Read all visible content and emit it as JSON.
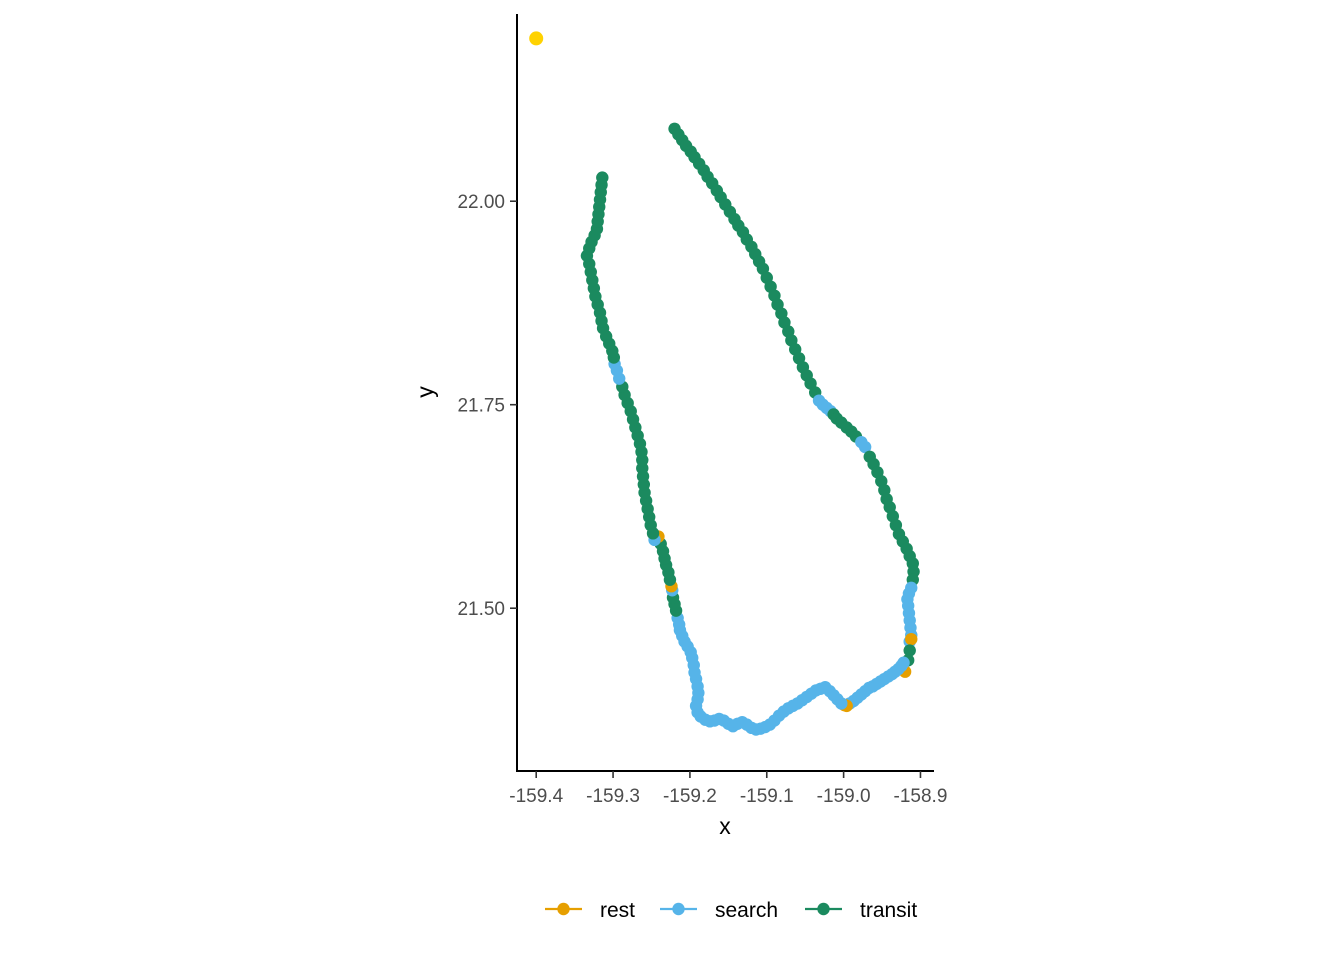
{
  "chart_data": {
    "type": "scatter",
    "title": "",
    "xlabel": "x",
    "ylabel": "y",
    "xlim": [
      -159.425,
      -158.885
    ],
    "ylim": [
      21.3,
      22.23
    ],
    "x_ticks": [
      -159.4,
      -159.3,
      -159.2,
      -159.1,
      -159.0,
      -158.9
    ],
    "x_tick_labels": [
      "-159.4",
      "-159.3",
      "-159.2",
      "-159.1",
      "-159.0",
      "-158.9"
    ],
    "y_ticks": [
      21.5,
      21.75,
      22.0
    ],
    "y_tick_labels": [
      "21.50",
      "21.75",
      "22.00"
    ],
    "grid": false,
    "legend_position": "bottom",
    "colors": {
      "rest": "#E69F00",
      "search": "#56B4E9",
      "transit": "#1B8A5F",
      "start": "#FFD200"
    },
    "legend": [
      {
        "key": "rest",
        "label": "rest"
      },
      {
        "key": "search",
        "label": "search"
      },
      {
        "key": "transit",
        "label": "transit"
      }
    ],
    "start_point": {
      "x": -159.4,
      "y": 22.2
    },
    "track": [
      [
        -159.22,
        22.089,
        "transit"
      ],
      [
        -159.215,
        22.082,
        "transit"
      ],
      [
        -159.21,
        22.075,
        "transit"
      ],
      [
        -159.205,
        22.068,
        "transit"
      ],
      [
        -159.199,
        22.061,
        "transit"
      ],
      [
        -159.194,
        22.054,
        "transit"
      ],
      [
        -159.188,
        22.046,
        "transit"
      ],
      [
        -159.182,
        22.038,
        "transit"
      ],
      [
        -159.177,
        22.03,
        "transit"
      ],
      [
        -159.171,
        22.022,
        "transit"
      ],
      [
        -159.165,
        22.013,
        "transit"
      ],
      [
        -159.16,
        22.005,
        "transit"
      ],
      [
        -159.154,
        21.996,
        "transit"
      ],
      [
        -159.148,
        21.987,
        "transit"
      ],
      [
        -159.142,
        21.978,
        "transit"
      ],
      [
        -159.137,
        21.97,
        "transit"
      ],
      [
        -159.131,
        21.962,
        "transit"
      ],
      [
        -159.126,
        21.953,
        "transit"
      ],
      [
        -159.12,
        21.944,
        "transit"
      ],
      [
        -159.115,
        21.935,
        "transit"
      ],
      [
        -159.11,
        21.926,
        "transit"
      ],
      [
        -159.105,
        21.917,
        "transit"
      ],
      [
        -159.1,
        21.906,
        "transit"
      ],
      [
        -159.095,
        21.895,
        "transit"
      ],
      [
        -159.09,
        21.884,
        "transit"
      ],
      [
        -159.086,
        21.873,
        "transit"
      ],
      [
        -159.081,
        21.862,
        "transit"
      ],
      [
        -159.077,
        21.851,
        "transit"
      ],
      [
        -159.072,
        21.84,
        "transit"
      ],
      [
        -159.068,
        21.829,
        "transit"
      ],
      [
        -159.063,
        21.818,
        "transit"
      ],
      [
        -159.058,
        21.807,
        "transit"
      ],
      [
        -159.053,
        21.796,
        "transit"
      ],
      [
        -159.048,
        21.786,
        "transit"
      ],
      [
        -159.043,
        21.776,
        "transit"
      ],
      [
        -159.037,
        21.765,
        "transit"
      ],
      [
        -159.032,
        21.755,
        "search"
      ],
      [
        -159.027,
        21.75,
        "search"
      ],
      [
        -159.022,
        21.746,
        "search"
      ],
      [
        -159.017,
        21.742,
        "search"
      ],
      [
        -159.013,
        21.738,
        "transit"
      ],
      [
        -159.009,
        21.733,
        "transit"
      ],
      [
        -159.003,
        21.728,
        "transit"
      ],
      [
        -158.996,
        21.722,
        "transit"
      ],
      [
        -158.99,
        21.717,
        "transit"
      ],
      [
        -158.984,
        21.711,
        "transit"
      ],
      [
        -158.977,
        21.704,
        "search"
      ],
      [
        -158.972,
        21.698,
        "search"
      ],
      [
        -158.966,
        21.686,
        "transit"
      ],
      [
        -158.961,
        21.677,
        "transit"
      ],
      [
        -158.956,
        21.667,
        "transit"
      ],
      [
        -158.951,
        21.656,
        "transit"
      ],
      [
        -158.947,
        21.645,
        "transit"
      ],
      [
        -158.944,
        21.634,
        "transit"
      ],
      [
        -158.94,
        21.624,
        "transit"
      ],
      [
        -158.936,
        21.613,
        "transit"
      ],
      [
        -158.932,
        21.602,
        "transit"
      ],
      [
        -158.928,
        21.591,
        "transit"
      ],
      [
        -158.923,
        21.582,
        "transit"
      ],
      [
        -158.918,
        21.573,
        "transit"
      ],
      [
        -158.914,
        21.564,
        "transit"
      ],
      [
        -158.91,
        21.555,
        "transit"
      ],
      [
        -158.909,
        21.545,
        "transit"
      ],
      [
        -158.91,
        21.535,
        "transit"
      ],
      [
        -158.912,
        21.525,
        "search"
      ],
      [
        -158.915,
        21.518,
        "search"
      ],
      [
        -158.917,
        21.511,
        "search"
      ],
      [
        -158.916,
        21.503,
        "search"
      ],
      [
        -158.915,
        21.494,
        "search"
      ],
      [
        -158.914,
        21.485,
        "search"
      ],
      [
        -158.913,
        21.476,
        "search"
      ],
      [
        -158.912,
        21.467,
        "search"
      ],
      [
        -158.914,
        21.459,
        "search"
      ],
      [
        -158.912,
        21.462,
        "rest"
      ],
      [
        -158.914,
        21.448,
        "transit"
      ],
      [
        -158.916,
        21.436,
        "transit"
      ],
      [
        -158.92,
        21.422,
        "rest"
      ],
      [
        -158.922,
        21.433,
        "search"
      ],
      [
        -158.925,
        21.429,
        "search"
      ],
      [
        -158.929,
        21.425,
        "search"
      ],
      [
        -158.933,
        21.422,
        "search"
      ],
      [
        -158.937,
        21.419,
        "search"
      ],
      [
        -158.942,
        21.416,
        "search"
      ],
      [
        -158.947,
        21.413,
        "search"
      ],
      [
        -158.952,
        21.41,
        "search"
      ],
      [
        -158.957,
        21.407,
        "search"
      ],
      [
        -158.962,
        21.404,
        "search"
      ],
      [
        -158.967,
        21.402,
        "search"
      ],
      [
        -158.972,
        21.398,
        "search"
      ],
      [
        -158.977,
        21.394,
        "search"
      ],
      [
        -158.982,
        21.39,
        "search"
      ],
      [
        -158.987,
        21.386,
        "search"
      ],
      [
        -158.992,
        21.383,
        "search"
      ],
      [
        -158.996,
        21.38,
        "rest"
      ],
      [
        -158.999,
        21.381,
        "rest"
      ],
      [
        -159.003,
        21.383,
        "search"
      ],
      [
        -159.008,
        21.388,
        "search"
      ],
      [
        -159.013,
        21.393,
        "search"
      ],
      [
        -159.018,
        21.398,
        "search"
      ],
      [
        -159.024,
        21.403,
        "search"
      ],
      [
        -159.03,
        21.401,
        "search"
      ],
      [
        -159.036,
        21.399,
        "search"
      ],
      [
        -159.042,
        21.395,
        "search"
      ],
      [
        -159.048,
        21.391,
        "search"
      ],
      [
        -159.054,
        21.387,
        "search"
      ],
      [
        -159.06,
        21.383,
        "search"
      ],
      [
        -159.066,
        21.38,
        "search"
      ],
      [
        -159.072,
        21.377,
        "search"
      ],
      [
        -159.078,
        21.373,
        "search"
      ],
      [
        -159.084,
        21.368,
        "search"
      ],
      [
        -159.09,
        21.362,
        "search"
      ],
      [
        -159.096,
        21.357,
        "search"
      ],
      [
        -159.102,
        21.354,
        "search"
      ],
      [
        -159.108,
        21.352,
        "search"
      ],
      [
        -159.114,
        21.351,
        "search"
      ],
      [
        -159.12,
        21.353,
        "search"
      ],
      [
        -159.126,
        21.357,
        "search"
      ],
      [
        -159.132,
        21.36,
        "search"
      ],
      [
        -159.138,
        21.358,
        "search"
      ],
      [
        -159.144,
        21.355,
        "search"
      ],
      [
        -159.15,
        21.358,
        "search"
      ],
      [
        -159.156,
        21.362,
        "search"
      ],
      [
        -159.162,
        21.364,
        "search"
      ],
      [
        -159.168,
        21.362,
        "search"
      ],
      [
        -159.174,
        21.361,
        "search"
      ],
      [
        -159.18,
        21.363,
        "search"
      ],
      [
        -159.186,
        21.367,
        "search"
      ],
      [
        -159.19,
        21.372,
        "search"
      ],
      [
        -159.192,
        21.38,
        "search"
      ],
      [
        -159.19,
        21.388,
        "search"
      ],
      [
        -159.189,
        21.396,
        "search"
      ],
      [
        -159.19,
        21.404,
        "search"
      ],
      [
        -159.192,
        21.413,
        "search"
      ],
      [
        -159.194,
        21.421,
        "search"
      ],
      [
        -159.195,
        21.43,
        "search"
      ],
      [
        -159.197,
        21.439,
        "search"
      ],
      [
        -159.199,
        21.446,
        "search"
      ],
      [
        -159.203,
        21.453,
        "search"
      ],
      [
        -159.207,
        21.459,
        "search"
      ],
      [
        -159.21,
        21.466,
        "search"
      ],
      [
        -159.213,
        21.473,
        "search"
      ],
      [
        -159.214,
        21.48,
        "search"
      ],
      [
        -159.216,
        21.488,
        "search"
      ],
      [
        -159.218,
        21.497,
        "transit"
      ],
      [
        -159.22,
        21.505,
        "transit"
      ],
      [
        -159.222,
        21.513,
        "transit"
      ],
      [
        -159.223,
        21.522,
        "search"
      ],
      [
        -159.224,
        21.527,
        "rest"
      ],
      [
        -159.226,
        21.535,
        "transit"
      ],
      [
        -159.228,
        21.544,
        "transit"
      ],
      [
        -159.231,
        21.553,
        "transit"
      ],
      [
        -159.233,
        21.561,
        "transit"
      ],
      [
        -159.235,
        21.57,
        "transit"
      ],
      [
        -159.238,
        21.579,
        "transit"
      ],
      [
        -159.241,
        21.588,
        "rest"
      ],
      [
        -159.246,
        21.584,
        "search"
      ],
      [
        -159.248,
        21.592,
        "transit"
      ],
      [
        -159.251,
        21.602,
        "transit"
      ],
      [
        -159.253,
        21.612,
        "transit"
      ],
      [
        -159.255,
        21.622,
        "transit"
      ],
      [
        -159.257,
        21.632,
        "transit"
      ],
      [
        -159.259,
        21.642,
        "transit"
      ],
      [
        -159.26,
        21.652,
        "transit"
      ],
      [
        -159.261,
        21.662,
        "transit"
      ],
      [
        -159.262,
        21.672,
        "transit"
      ],
      [
        -159.262,
        21.682,
        "transit"
      ],
      [
        -159.263,
        21.692,
        "transit"
      ],
      [
        -159.265,
        21.702,
        "transit"
      ],
      [
        -159.268,
        21.712,
        "transit"
      ],
      [
        -159.271,
        21.722,
        "transit"
      ],
      [
        -159.274,
        21.732,
        "transit"
      ],
      [
        -159.277,
        21.742,
        "transit"
      ],
      [
        -159.281,
        21.752,
        "transit"
      ],
      [
        -159.285,
        21.762,
        "transit"
      ],
      [
        -159.288,
        21.772,
        "transit"
      ],
      [
        -159.292,
        21.782,
        "search"
      ],
      [
        -159.295,
        21.792,
        "search"
      ],
      [
        -159.298,
        21.8,
        "search"
      ],
      [
        -159.299,
        21.808,
        "transit"
      ],
      [
        -159.301,
        21.816,
        "transit"
      ],
      [
        -159.305,
        21.825,
        "transit"
      ],
      [
        -159.309,
        21.834,
        "transit"
      ],
      [
        -159.313,
        21.844,
        "transit"
      ],
      [
        -159.315,
        21.853,
        "transit"
      ],
      [
        -159.317,
        21.863,
        "transit"
      ],
      [
        -159.32,
        21.873,
        "transit"
      ],
      [
        -159.323,
        21.883,
        "transit"
      ],
      [
        -159.325,
        21.893,
        "transit"
      ],
      [
        -159.327,
        21.903,
        "transit"
      ],
      [
        -159.329,
        21.913,
        "transit"
      ],
      [
        -159.331,
        21.923,
        "transit"
      ],
      [
        -159.334,
        21.933,
        "transit"
      ],
      [
        -159.331,
        21.942,
        "transit"
      ],
      [
        -159.328,
        21.95,
        "transit"
      ],
      [
        -159.324,
        21.958,
        "transit"
      ],
      [
        -159.321,
        21.966,
        "transit"
      ],
      [
        -159.32,
        21.975,
        "transit"
      ],
      [
        -159.319,
        21.984,
        "transit"
      ],
      [
        -159.318,
        21.993,
        "transit"
      ],
      [
        -159.317,
        22.002,
        "transit"
      ],
      [
        -159.316,
        22.011,
        "transit"
      ],
      [
        -159.315,
        22.02,
        "transit"
      ],
      [
        -159.314,
        22.029,
        "transit"
      ]
    ]
  }
}
